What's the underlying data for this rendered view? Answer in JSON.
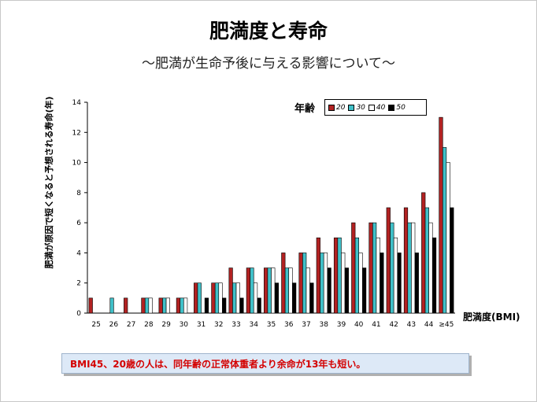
{
  "title": "肥満度と寿命",
  "subtitle": "～肥満が生命予後に与える影響について～",
  "note": "BMI45、20歳の人は、同年齢の正常体重者より余命が13年も短い。",
  "chart_data": {
    "type": "bar",
    "xlabel": "肥満度(BMI)",
    "ylabel": "肥満が原因で短くなると予想される寿命(年)",
    "ylim": [
      0,
      14
    ],
    "yticks": [
      0,
      2,
      4,
      6,
      8,
      10,
      12,
      14
    ],
    "legend_title": "年齢",
    "legend_position": "top-right",
    "categories": [
      "25",
      "26",
      "27",
      "28",
      "29",
      "30",
      "31",
      "32",
      "33",
      "34",
      "35",
      "36",
      "37",
      "38",
      "39",
      "40",
      "41",
      "42",
      "43",
      "44",
      "≥45"
    ],
    "series": [
      {
        "name": "20",
        "color": "#b22222",
        "values": [
          1,
          0,
          1,
          1,
          1,
          1,
          2,
          2,
          3,
          3,
          3,
          4,
          4,
          5,
          5,
          6,
          6,
          7,
          7,
          8,
          13
        ]
      },
      {
        "name": "30",
        "color": "#40c0c8",
        "values": [
          0,
          1,
          0,
          1,
          1,
          1,
          2,
          2,
          2,
          3,
          3,
          3,
          4,
          4,
          5,
          5,
          6,
          6,
          6,
          7,
          11
        ]
      },
      {
        "name": "40",
        "color": "#ffffff",
        "values": [
          0,
          0,
          0,
          1,
          1,
          1,
          0,
          2,
          2,
          2,
          3,
          3,
          3,
          4,
          4,
          4,
          5,
          5,
          6,
          6,
          10
        ]
      },
      {
        "name": "50",
        "color": "#000000",
        "values": [
          0,
          0,
          0,
          0,
          0,
          0,
          1,
          1,
          1,
          1,
          2,
          2,
          2,
          3,
          3,
          3,
          4,
          4,
          4,
          5,
          7
        ]
      }
    ]
  }
}
